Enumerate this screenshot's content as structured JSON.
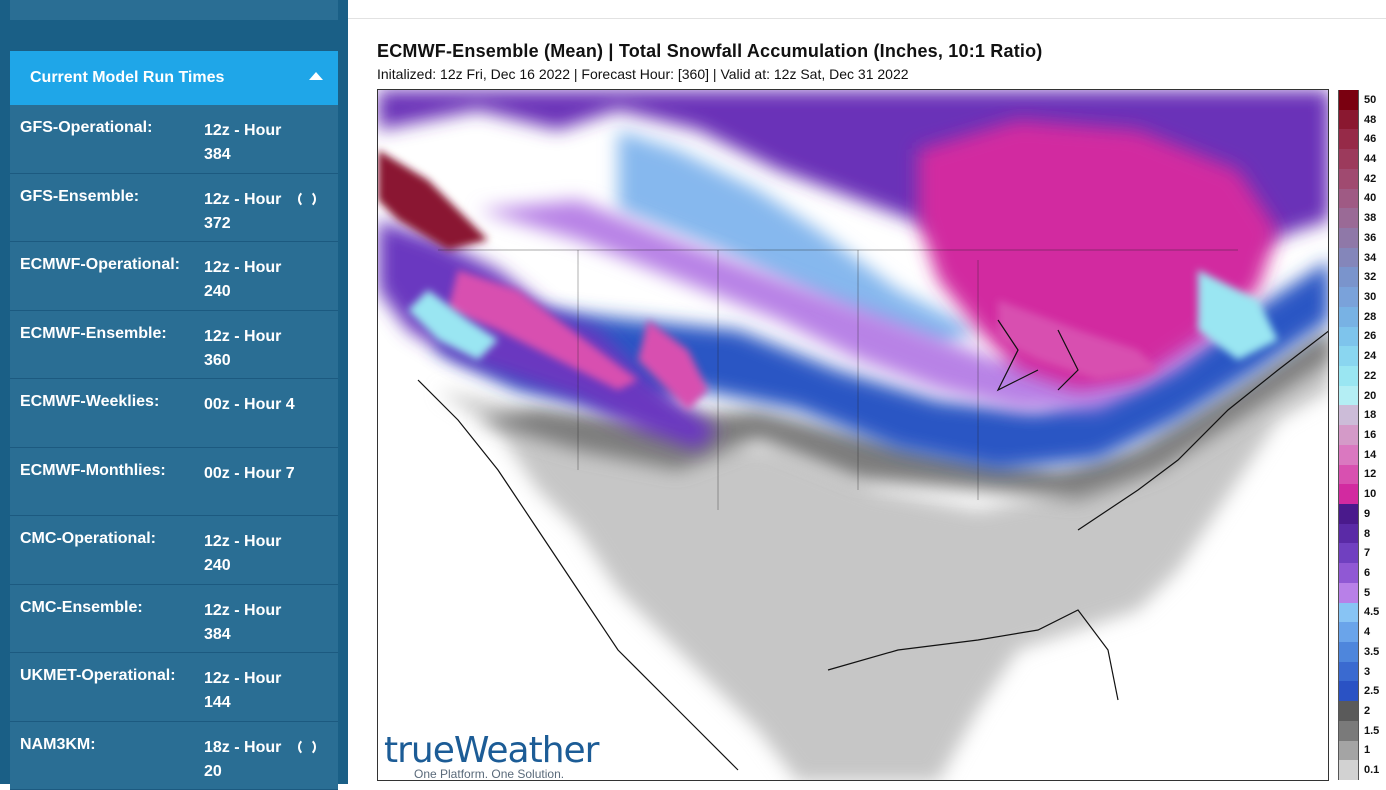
{
  "sidebar": {
    "panel_title": "Current Model Run Times",
    "models": [
      {
        "name": "GFS-Operational:",
        "run": "12z - Hour 384",
        "loading": false
      },
      {
        "name": "GFS-Ensemble:",
        "run": "12z - Hour 372",
        "loading": true
      },
      {
        "name": "ECMWF-Operational:",
        "run": "12z - Hour 240",
        "loading": false
      },
      {
        "name": "ECMWF-Ensemble:",
        "run": "12z - Hour 360",
        "loading": false
      },
      {
        "name": "ECMWF-Weeklies:",
        "run": "00z - Hour 4",
        "loading": false
      },
      {
        "name": "ECMWF-Monthlies:",
        "run": "00z - Hour 7",
        "loading": false
      },
      {
        "name": "CMC-Operational:",
        "run": "12z - Hour 240",
        "loading": false
      },
      {
        "name": "CMC-Ensemble:",
        "run": "12z - Hour 384",
        "loading": false
      },
      {
        "name": "UKMET-Operational:",
        "run": "12z - Hour 144",
        "loading": false
      },
      {
        "name": "NAM3KM:",
        "run": "18z - Hour 20",
        "loading": true
      }
    ]
  },
  "map": {
    "title": "ECMWF-Ensemble (Mean) | Total Snowfall Accumulation (Inches, 10:1 Ratio)",
    "subtitle": "Initalized: 12z Fri, Dec 16 2022 | Forecast Hour: [360] | Valid at: 12z Sat, Dec 31 2022",
    "logo_text": "trueWeather",
    "logo_tagline": "One Platform. One Solution."
  },
  "legend": {
    "labels": [
      "50",
      "48",
      "46",
      "44",
      "42",
      "40",
      "38",
      "36",
      "34",
      "32",
      "30",
      "28",
      "26",
      "24",
      "22",
      "20",
      "18",
      "16",
      "14",
      "12",
      "10",
      "9",
      "8",
      "7",
      "6",
      "5",
      "4.5",
      "4",
      "3.5",
      "3",
      "2.5",
      "2",
      "1.5",
      "1",
      "0.1"
    ],
    "colors": [
      "#7a0010",
      "#8a1830",
      "#962a48",
      "#9c3a5c",
      "#a04a70",
      "#9f5a84",
      "#9a6a96",
      "#8f78a8",
      "#8486ba",
      "#7a94cc",
      "#7aa2da",
      "#78b2e4",
      "#7ec4ec",
      "#8ad6f0",
      "#9ae6f2",
      "#b4eef4",
      "#ccbcd8",
      "#d49ac8",
      "#da78c0",
      "#d850b0",
      "#d22aa0",
      "#4a1a8c",
      "#5a2aa6",
      "#7040c0",
      "#9058d4",
      "#b880e8",
      "#88c4f4",
      "#6aa4ea",
      "#4e86dc",
      "#3a6ad0",
      "#2a52c4",
      "#5a5a5a",
      "#7a7a7a",
      "#a4a4a4",
      "#d2d2d2"
    ]
  }
}
